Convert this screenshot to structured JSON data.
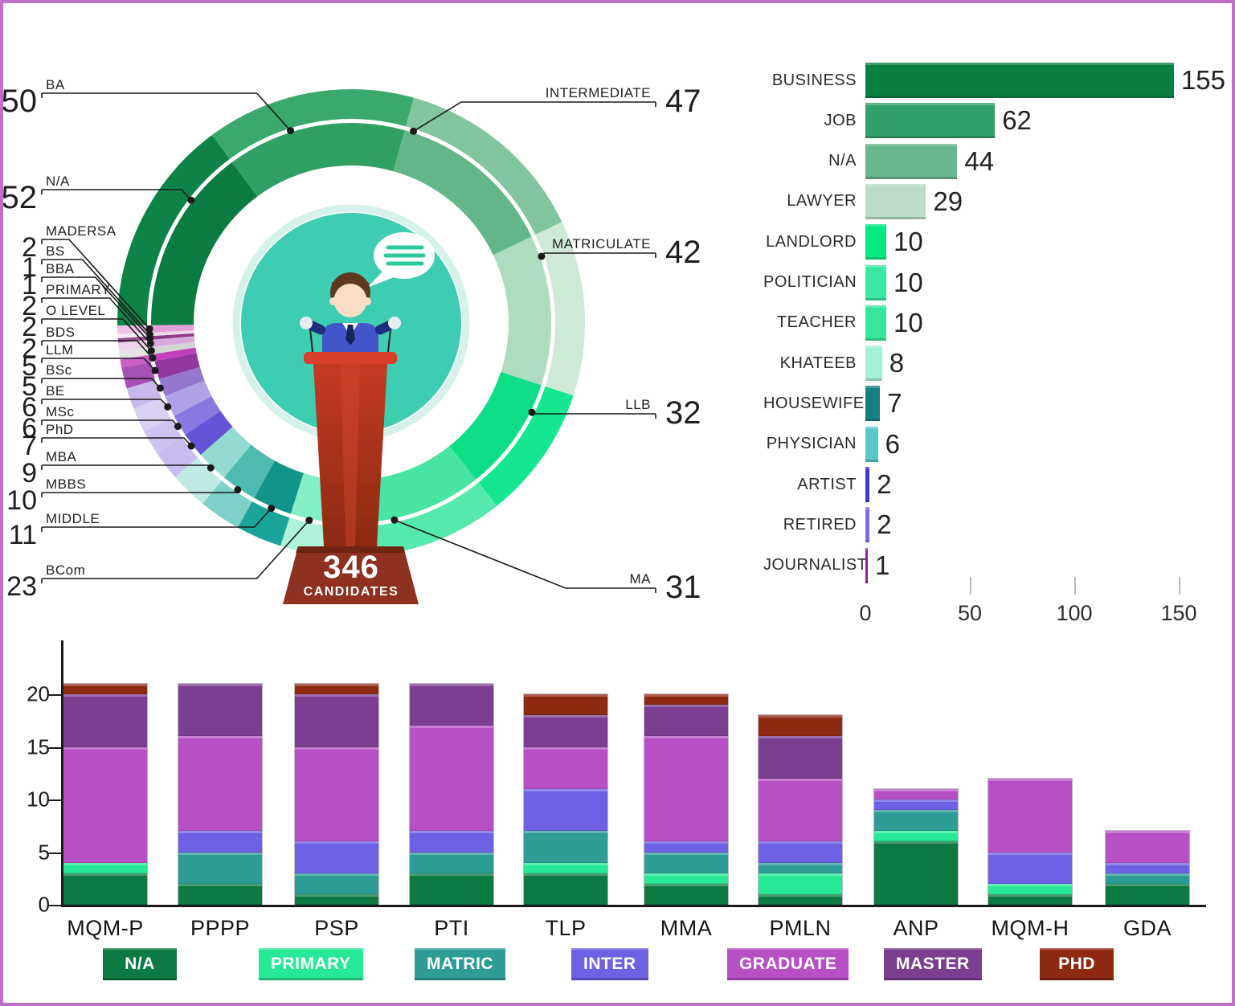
{
  "page": {
    "border_color": "#c06fc9",
    "background": "#ffffff"
  },
  "donut_center": {
    "total": "346",
    "label": "CANDIDATES"
  },
  "chart_data": [
    {
      "type": "pie",
      "subtype": "donut",
      "title": "",
      "center_total": "346",
      "center_label": "CANDIDATES",
      "labels": [
        "INTERMEDIATE",
        "MATRICULATE",
        "LLB",
        "MA",
        "BCom",
        "MIDDLE",
        "MBBS",
        "MBA",
        "PhD",
        "MSc",
        "BE",
        "BSc",
        "LLM",
        "BDS",
        "O LEVEL",
        "PRIMARY",
        "BBA",
        "BS",
        "MADERSA",
        "N/A",
        "BA"
      ],
      "values": [
        47,
        42,
        32,
        31,
        23,
        11,
        10,
        9,
        7,
        6,
        6,
        5,
        5,
        2,
        2,
        2,
        1,
        1,
        2,
        52,
        50
      ],
      "colors_inner": [
        "#63b687",
        "#aedcbf",
        "#0dde86",
        "#47e4a3",
        "#84eec6",
        "#13948b",
        "#4fbab1",
        "#93dbd1",
        "#6355d6",
        "#8878e0",
        "#b0a0e8",
        "#9477cf",
        "#93369f",
        "#bf3fbc",
        "#d4d4d4",
        "#d9a9dd",
        "#8c3a86",
        "#eed6ea",
        "#e3a0d6",
        "#0a7c42",
        "#31a065"
      ],
      "colors_outer": [
        "#82c59e",
        "#cfe9d8",
        "#14e78e",
        "#55e9ad",
        "#aff3db",
        "#1ba59a",
        "#7fd0c9",
        "#bfeae4",
        "#c9bcee",
        "#cdc2f0",
        "#d9d0f4",
        "#c9b8ec",
        "#a750b5",
        "#cc5ec8",
        "#e3e3e3",
        "#ecd4ee",
        "#9a4d95",
        "#f7e9f5",
        "#f0c3e7",
        "#0d8348",
        "#3ba86e"
      ],
      "legend_position": "none"
    },
    {
      "type": "bar",
      "orientation": "horizontal",
      "title": "",
      "categories": [
        "BUSINESS",
        "JOB",
        "N/A",
        "LAWYER",
        "LANDLORD",
        "POLITICIAN",
        "TEACHER",
        "KHATEEB",
        "HOUSEWIFE",
        "PHYSICIAN",
        "ARTIST",
        "RETIRED",
        "JOURNALIST"
      ],
      "values": [
        155,
        62,
        44,
        29,
        10,
        10,
        10,
        8,
        7,
        6,
        2,
        2,
        1
      ],
      "colors": [
        "#0a7f44",
        "#31a06a",
        "#68b78e",
        "#badcc7",
        "#00ea7f",
        "#39e9a1",
        "#35e79d",
        "#a5f1d6",
        "#157f82",
        "#5ac6c6",
        "#4337d1",
        "#7e6ce6",
        "#8e219b"
      ],
      "x_ticks": [
        0,
        50,
        100,
        150
      ],
      "xlim": [
        0,
        160
      ],
      "grid": false
    },
    {
      "type": "bar",
      "stacked": true,
      "title": "",
      "categories": [
        "MQM-P",
        "PPPP",
        "PSP",
        "PTI",
        "TLP",
        "MMA",
        "PMLN",
        "ANP",
        "MQM-H",
        "GDA"
      ],
      "series": [
        {
          "name": "N/A",
          "color": "#0d7a43",
          "values": [
            3,
            2,
            1,
            3,
            3,
            2,
            1,
            6,
            1,
            2
          ]
        },
        {
          "name": "PRIMARY",
          "color": "#27e896",
          "values": [
            1,
            0,
            0,
            0,
            1,
            1,
            2,
            1,
            1,
            0
          ]
        },
        {
          "name": "MATRIC",
          "color": "#2d9d96",
          "values": [
            0,
            3,
            2,
            2,
            3,
            2,
            1,
            2,
            0,
            1
          ]
        },
        {
          "name": "INTER",
          "color": "#6e61e4",
          "values": [
            0,
            2,
            3,
            2,
            4,
            1,
            2,
            1,
            3,
            1
          ]
        },
        {
          "name": "GRADUATE",
          "color": "#b750c5",
          "values": [
            11,
            9,
            9,
            10,
            4,
            10,
            6,
            1,
            7,
            3
          ]
        },
        {
          "name": "MASTER",
          "color": "#7b3e91",
          "values": [
            5,
            5,
            5,
            4,
            3,
            3,
            4,
            0,
            0,
            0
          ]
        },
        {
          "name": "PHD",
          "color": "#8e2a12",
          "values": [
            1,
            0,
            1,
            0,
            2,
            1,
            2,
            0,
            0,
            0
          ]
        }
      ],
      "totals": [
        21,
        21,
        21,
        21,
        20,
        20,
        18,
        11,
        12,
        7
      ],
      "y_ticks": [
        0,
        5,
        10,
        15,
        20
      ],
      "ylim": [
        0,
        22
      ],
      "legend_position": "bottom"
    }
  ]
}
